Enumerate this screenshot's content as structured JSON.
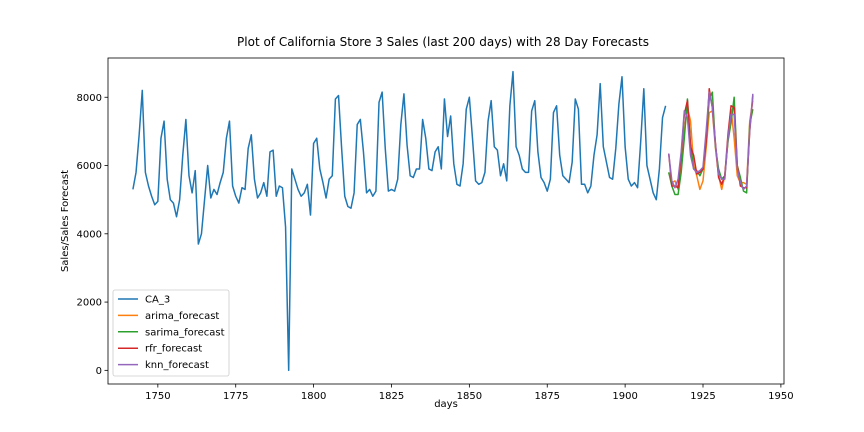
{
  "chart_data": {
    "type": "line",
    "title": "Plot of California Store 3 Sales (last 200 days) with 28 Day Forecasts",
    "xlabel": "days",
    "ylabel": "Sales/Sales Forecast",
    "xlim": [
      1734,
      1951
    ],
    "ylim": [
      -400,
      9150
    ],
    "xticks": [
      1750,
      1775,
      1800,
      1825,
      1850,
      1875,
      1900,
      1925,
      1950
    ],
    "yticks": [
      0,
      2000,
      4000,
      6000,
      8000
    ],
    "grid": false,
    "legend_position": "lower-left",
    "series": [
      {
        "name": "CA_3",
        "color": "#1f77b4",
        "x_start": 1742,
        "values": [
          5300,
          5800,
          6900,
          8200,
          5800,
          5400,
          5100,
          4850,
          4950,
          6800,
          7300,
          5600,
          5000,
          4900,
          4500,
          5000,
          6300,
          7350,
          5700,
          5200,
          5850,
          3700,
          4000,
          5000,
          6000,
          5050,
          5300,
          5150,
          5500,
          5800,
          6800,
          7300,
          5400,
          5100,
          4900,
          5350,
          5300,
          6500,
          6900,
          5600,
          5050,
          5200,
          5500,
          5100,
          6400,
          6450,
          5100,
          5400,
          5350,
          4200,
          0,
          5900,
          5600,
          5300,
          5100,
          5200,
          5450,
          4550,
          6650,
          6800,
          5900,
          5500,
          5050,
          5600,
          5700,
          7950,
          8050,
          6500,
          5100,
          4800,
          4750,
          5200,
          7200,
          7350,
          6400,
          5200,
          5300,
          5100,
          5250,
          7850,
          8150,
          6500,
          5250,
          5300,
          5250,
          5600,
          7200,
          8100,
          6600,
          5700,
          5650,
          5900,
          5900,
          7350,
          6800,
          5900,
          5850,
          6400,
          6550,
          5900,
          7950,
          6850,
          7450,
          6050,
          5450,
          5400,
          6050,
          7650,
          8000,
          6800,
          5550,
          5450,
          5500,
          5800,
          7300,
          7900,
          6550,
          6450,
          5700,
          6050,
          5550,
          7750,
          8750,
          6550,
          6300,
          5900,
          5800,
          5800,
          7600,
          7900,
          6400,
          5650,
          5500,
          5250,
          5600,
          7550,
          7750,
          6300,
          5700,
          5600,
          5500,
          6100,
          7950,
          7650,
          5450,
          5450,
          5200,
          5400,
          6300,
          6900,
          8400,
          6550,
          6100,
          5650,
          5600,
          6500,
          7800,
          8600,
          6550,
          5600,
          5400,
          5500,
          5350,
          6700,
          8250,
          6000,
          5600,
          5200,
          5000,
          5900,
          7400,
          7750
        ]
      },
      {
        "name": "arima_forecast",
        "color": "#ff7f0e",
        "x_start": 1914,
        "values": [
          5800,
          5500,
          5550,
          5300,
          5900,
          7000,
          7700,
          7300,
          6000,
          5700,
          5300,
          5550,
          6500,
          7550,
          7600,
          6500,
          5700,
          5300,
          5700,
          6700,
          7650,
          6800,
          5700,
          5500,
          5500,
          5450,
          7300,
          7900
        ]
      },
      {
        "name": "sarima_forecast",
        "color": "#2ca02c",
        "x_start": 1914,
        "values": [
          5800,
          5400,
          5150,
          5150,
          5800,
          6800,
          7950,
          6600,
          5900,
          5850,
          5700,
          5900,
          6700,
          7950,
          8150,
          6550,
          5900,
          5600,
          5700,
          6700,
          7250,
          8000,
          6000,
          5650,
          5250,
          5200,
          7200,
          7650
        ]
      },
      {
        "name": "rfr_forecast",
        "color": "#d62728",
        "x_start": 1914,
        "values": [
          6350,
          5400,
          5400,
          5350,
          6300,
          7500,
          7900,
          6550,
          6300,
          5750,
          5800,
          5900,
          6700,
          8250,
          7700,
          6650,
          5650,
          5450,
          5700,
          6900,
          7750,
          7700,
          6000,
          5400,
          5350,
          5350,
          7000,
          8050
        ]
      },
      {
        "name": "knn_forecast",
        "color": "#9467bd",
        "x_start": 1914,
        "values": [
          6350,
          5550,
          5350,
          5600,
          6400,
          7600,
          7400,
          6300,
          5900,
          5800,
          5850,
          5950,
          7000,
          8150,
          7700,
          6600,
          5750,
          5600,
          5600,
          6800,
          7500,
          7500,
          5900,
          5500,
          5300,
          5400,
          7050,
          8100
        ]
      }
    ]
  }
}
